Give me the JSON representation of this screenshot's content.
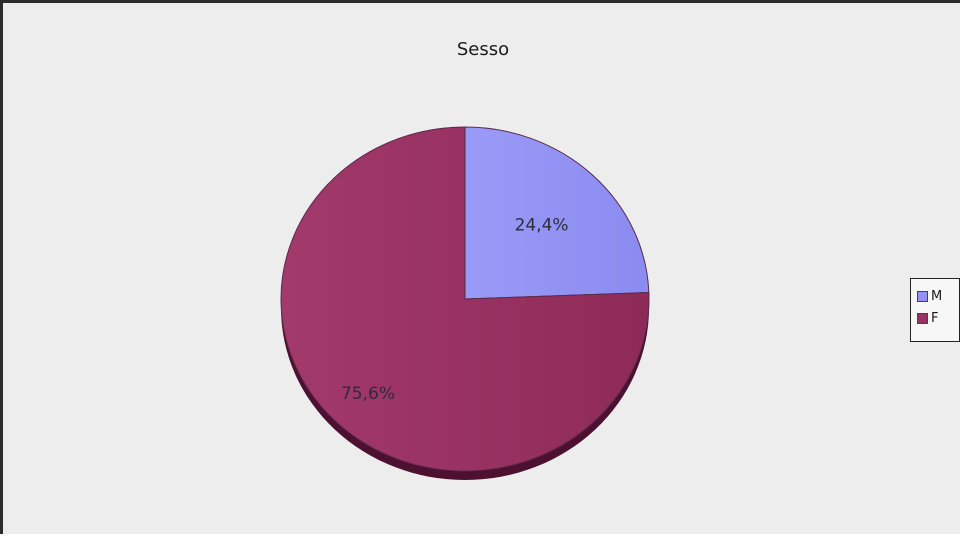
{
  "chart_data": {
    "type": "pie",
    "title": "Sesso",
    "slices": [
      {
        "name": "M",
        "value": 24.4,
        "label": "24,4%",
        "color": "#9393f5"
      },
      {
        "name": "F",
        "value": 75.6,
        "label": "75,6%",
        "color": "#993366"
      }
    ],
    "legend": {
      "placement": "right",
      "entries": [
        "M",
        "F"
      ]
    }
  }
}
